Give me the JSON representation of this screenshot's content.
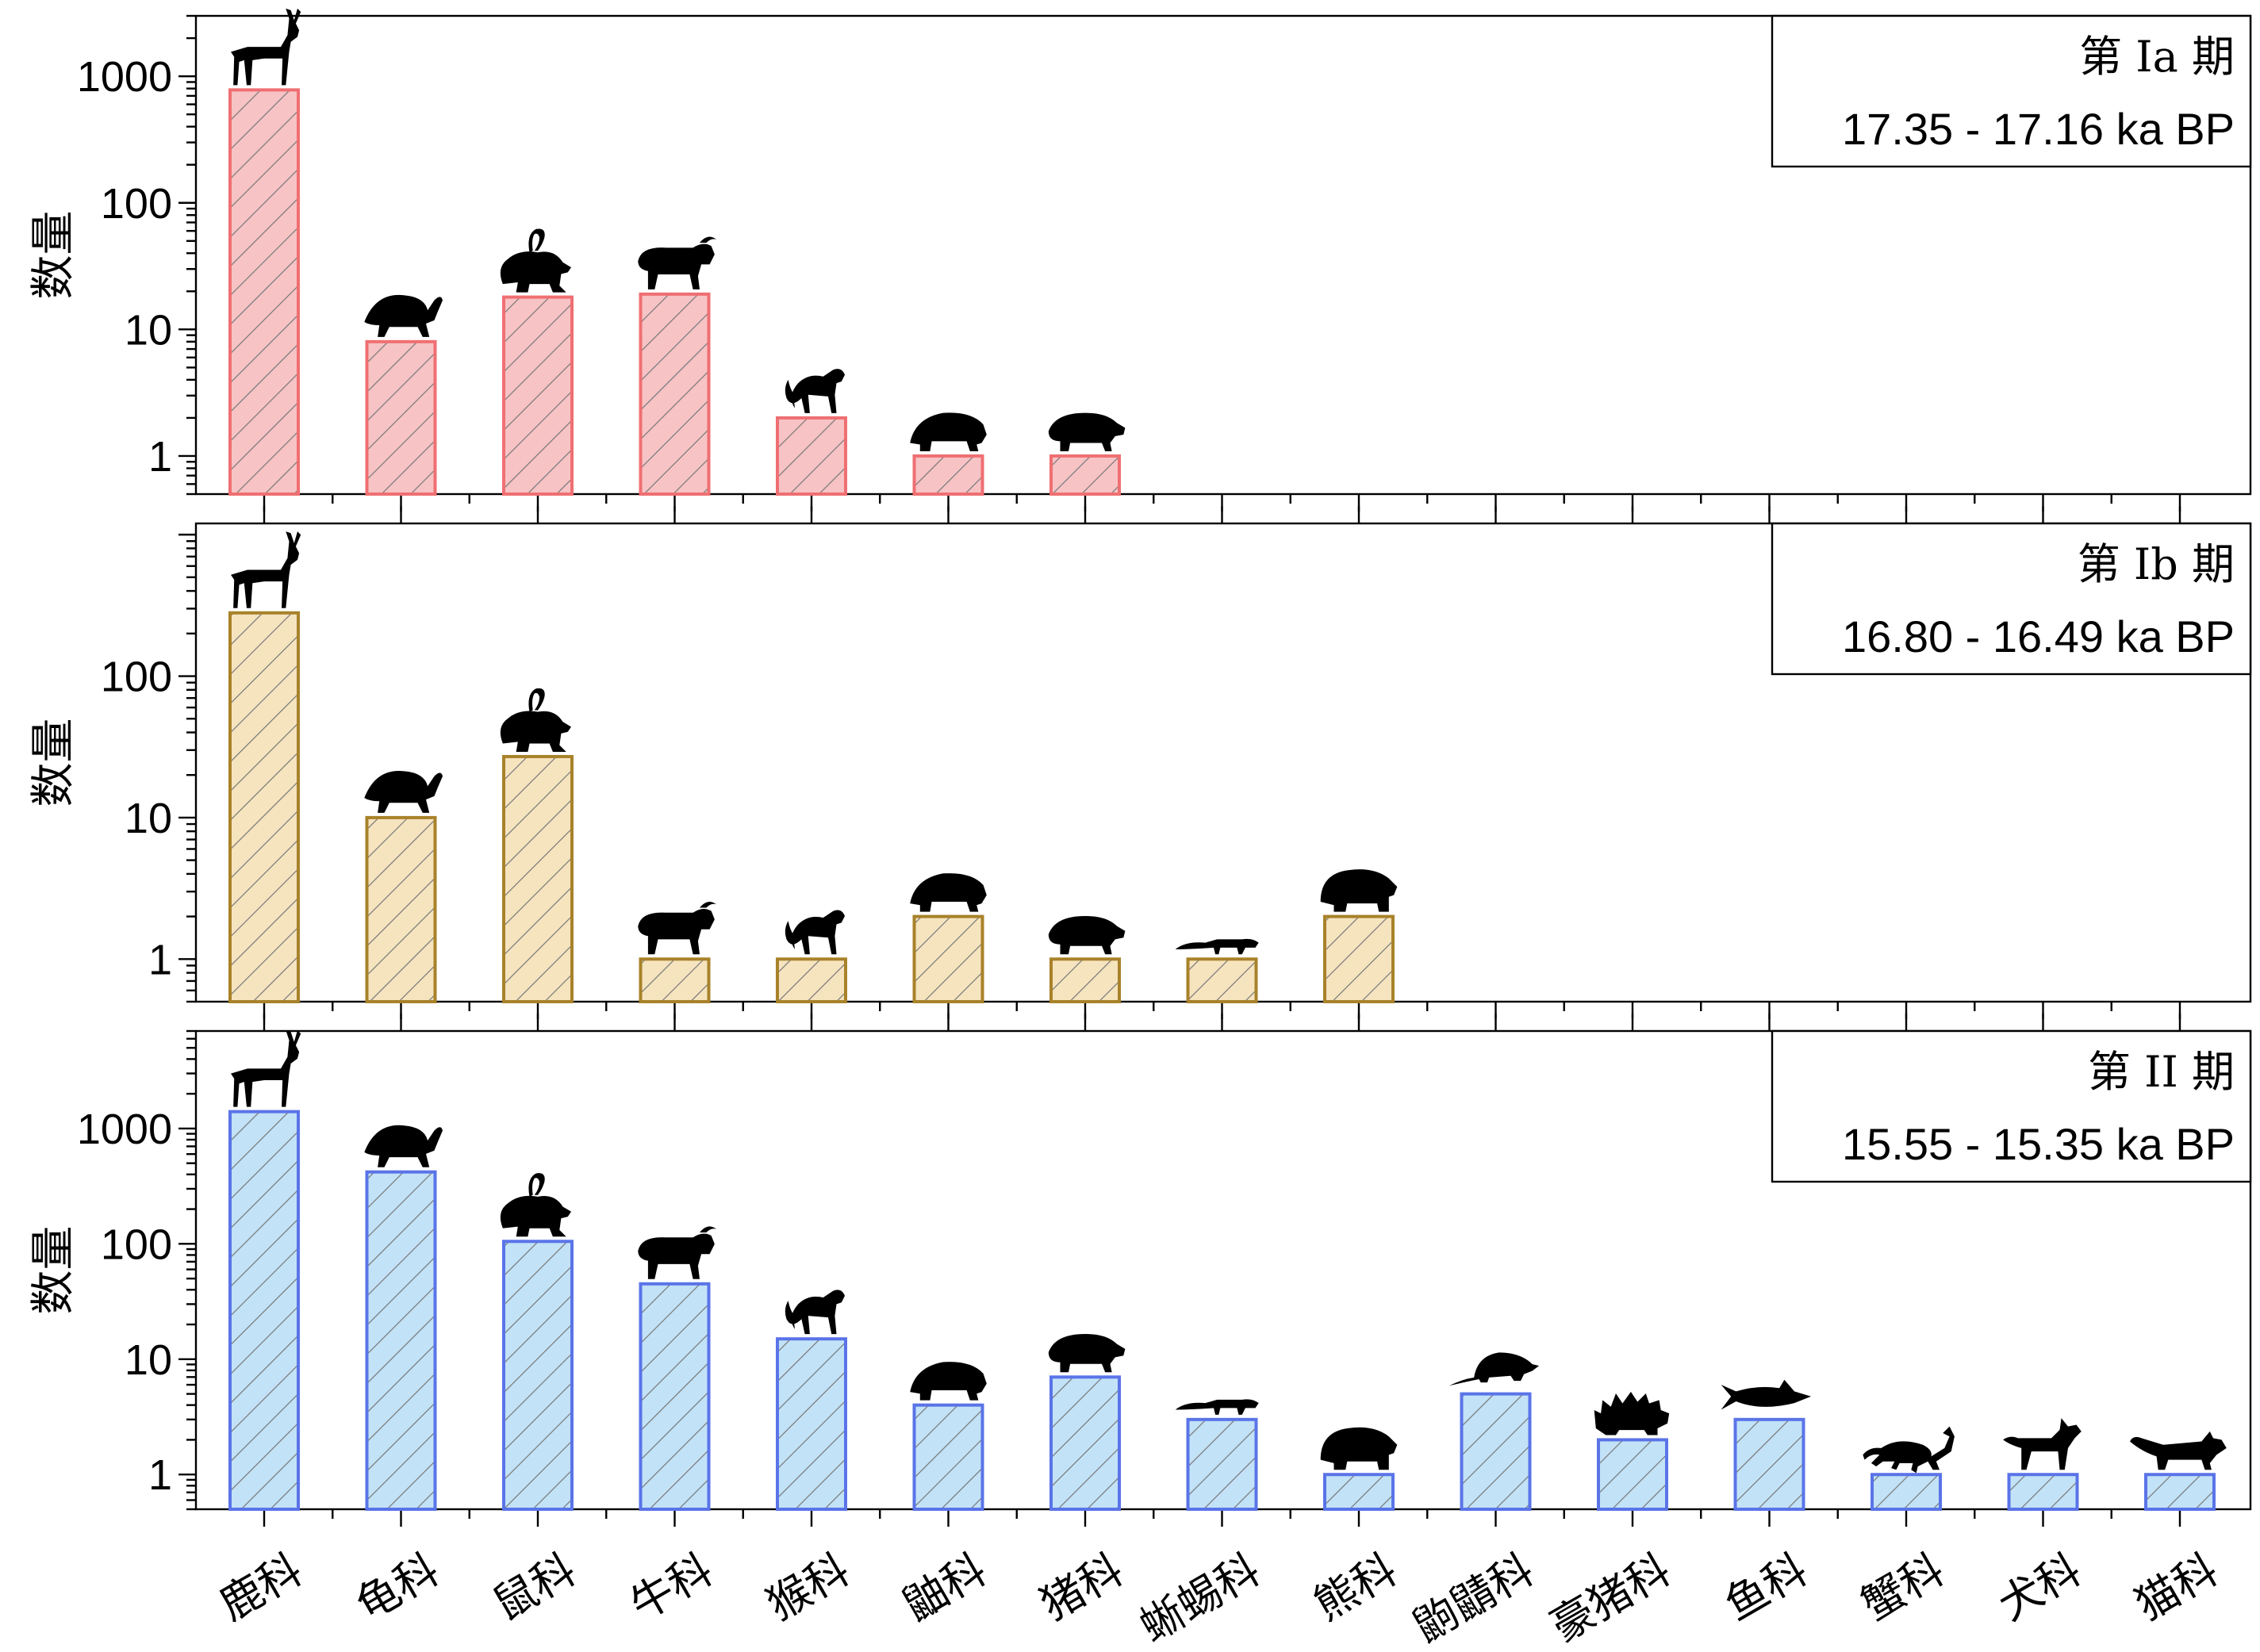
{
  "chart_data": {
    "type": "bar",
    "y_scale": "log",
    "categories": [
      "鹿科",
      "龟科",
      "鼠科",
      "牛科",
      "猴科",
      "鼬科",
      "猪科",
      "蜥蜴科",
      "熊科",
      "鼩鼱科",
      "豪猪科",
      "鱼科",
      "蟹科",
      "犬科",
      "猫科"
    ],
    "icons": [
      "deer-icon",
      "turtle-icon",
      "rat-icon",
      "buffalo-icon",
      "monkey-icon",
      "badger-icon",
      "boar-icon",
      "lizard-icon",
      "bear-icon",
      "shrew-icon",
      "porcupine-icon",
      "fish-icon",
      "crab-icon",
      "dog-icon",
      "cat-icon"
    ],
    "panels": [
      {
        "period": "第 Ia 期",
        "dates": "17.35 - 17.16 ka BP",
        "ylabel": "数量",
        "yticks": [
          "1",
          "10",
          "100",
          "1000"
        ],
        "ylim": [
          0.5,
          3000
        ],
        "fill": "#f7c3c5",
        "stroke": "#ef6f72",
        "values": [
          780,
          8,
          18,
          19,
          2,
          1,
          1,
          null,
          null,
          null,
          null,
          null,
          null,
          null,
          null
        ]
      },
      {
        "period": "第 Ib 期",
        "dates": "16.80 - 16.49 ka BP",
        "ylabel": "数量",
        "yticks": [
          "1",
          "10",
          "100"
        ],
        "ylim": [
          0.5,
          1200
        ],
        "fill": "#f6e4bf",
        "stroke": "#a8822a",
        "values": [
          280,
          10,
          27,
          1,
          1,
          2,
          1,
          1,
          2,
          null,
          null,
          null,
          null,
          null,
          null
        ]
      },
      {
        "period": "第 II 期",
        "dates": "15.55 - 15.35 ka BP",
        "ylabel": "数量",
        "yticks": [
          "1",
          "10",
          "100",
          "1000"
        ],
        "ylim": [
          0.5,
          7000
        ],
        "fill": "#c2e2f7",
        "stroke": "#5a74e8",
        "values": [
          1400,
          420,
          105,
          45,
          15,
          4,
          7,
          3,
          1,
          5,
          2,
          3,
          1,
          1,
          1
        ]
      }
    ]
  }
}
